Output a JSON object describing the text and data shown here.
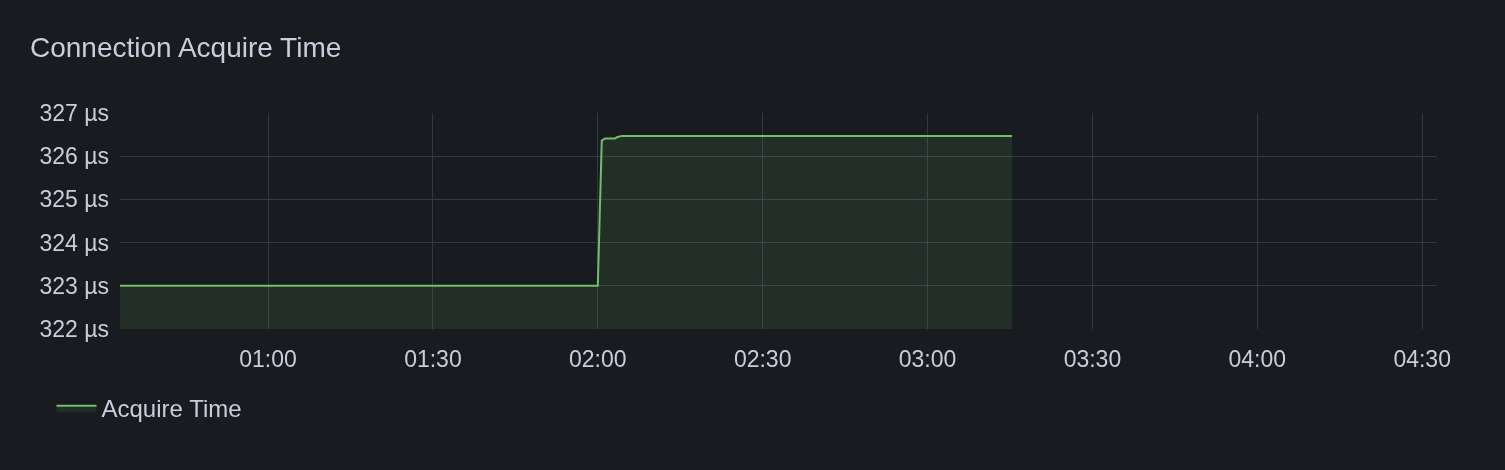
{
  "chart_data": {
    "type": "area",
    "title": "Connection Acquire Time",
    "x": [
      0.551,
      2.0,
      2.012,
      2.022,
      2.052,
      2.058,
      2.073,
      3.256
    ],
    "series": [
      {
        "name": "Acquire Time",
        "color": "#73bf69",
        "values": [
          323,
          323,
          326.36,
          326.41,
          326.41,
          326.44,
          326.47,
          326.47
        ]
      }
    ],
    "xlim": [
      0.551,
      4.545
    ],
    "xticks": [
      {
        "value": 1,
        "label": "01:00"
      },
      {
        "value": 1.5,
        "label": "01:30"
      },
      {
        "value": 2,
        "label": "02:00"
      },
      {
        "value": 2.5,
        "label": "02:30"
      },
      {
        "value": 3,
        "label": "03:00"
      },
      {
        "value": 3.5,
        "label": "03:30"
      },
      {
        "value": 4,
        "label": "04:00"
      },
      {
        "value": 4.5,
        "label": "04:30"
      }
    ],
    "ylim": [
      322,
      327
    ],
    "yticks": [
      {
        "value": 322,
        "label": "322 µs"
      },
      {
        "value": 323,
        "label": "323 µs"
      },
      {
        "value": 324,
        "label": "324 µs"
      },
      {
        "value": 325,
        "label": "325 µs"
      },
      {
        "value": 326,
        "label": "326 µs"
      },
      {
        "value": 327,
        "label": "327 µs"
      }
    ],
    "grid": true,
    "legend": "bottom"
  }
}
